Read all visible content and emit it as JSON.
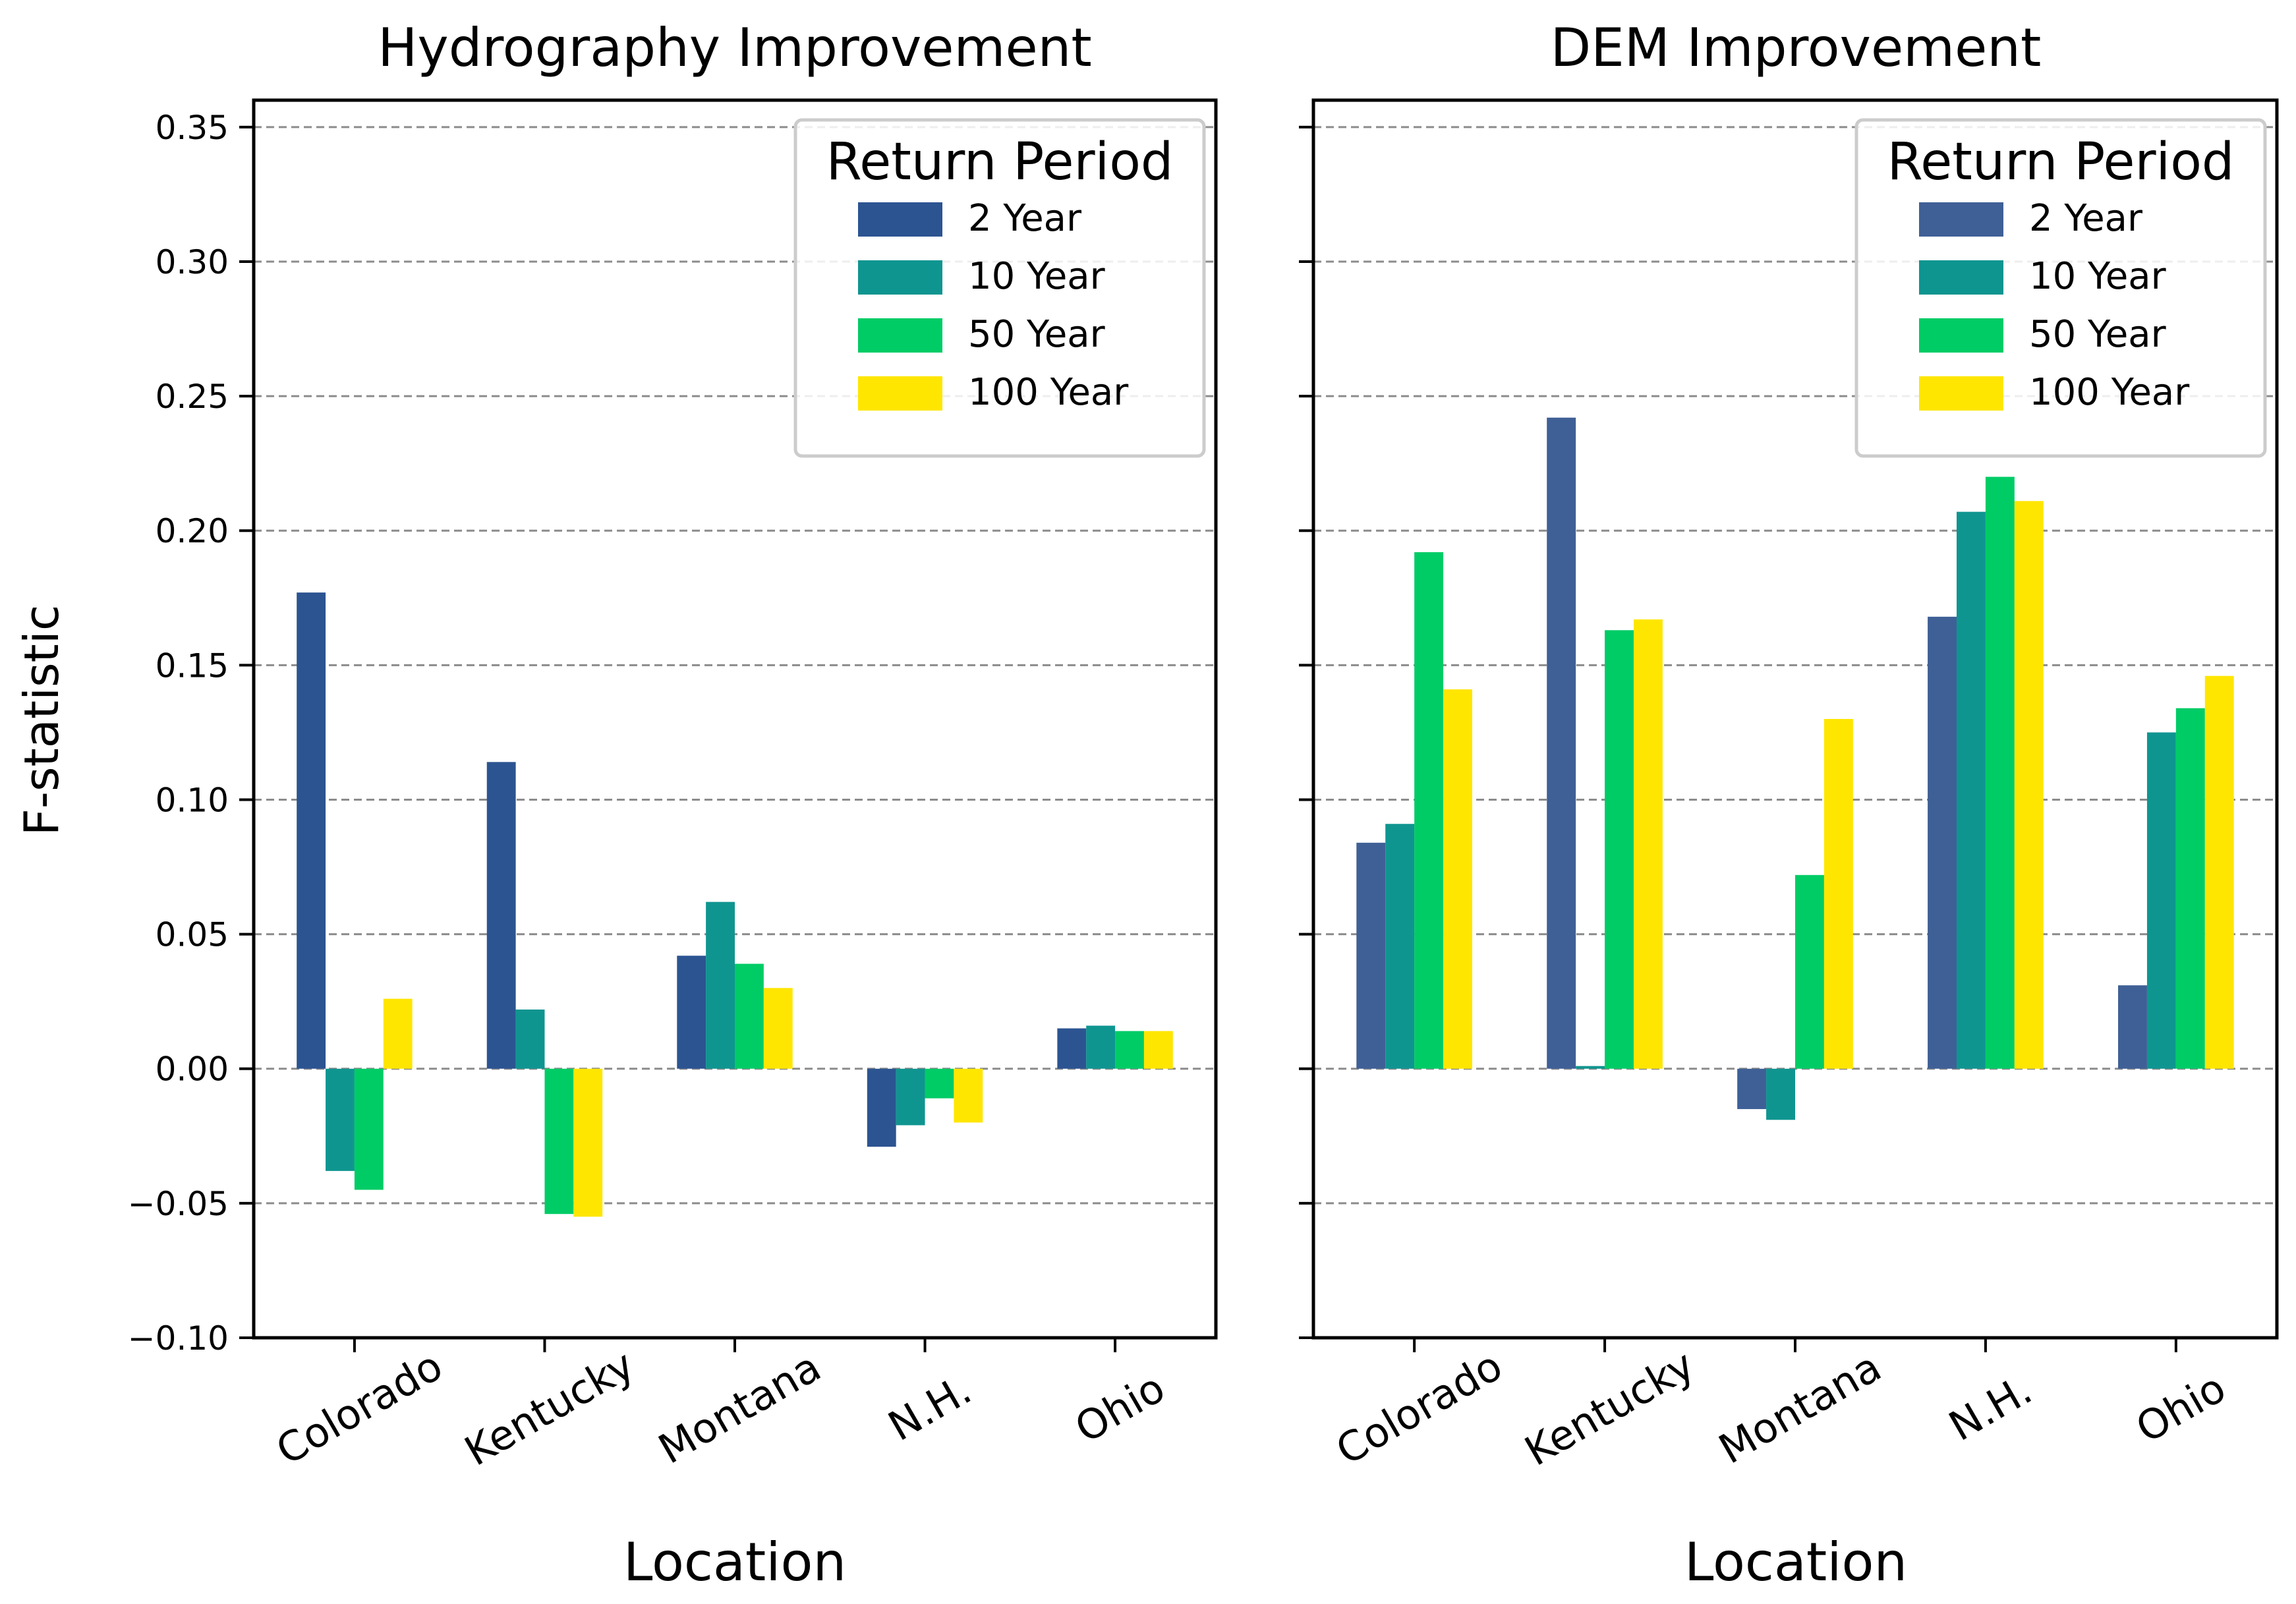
{
  "figure": {
    "ylabel": "F-statistic"
  },
  "chart_data": [
    {
      "type": "bar",
      "title": "Hydrography Improvement",
      "xlabel": "Location",
      "ylabel": "F-statistic",
      "ylim": [
        -0.1,
        0.36
      ],
      "yticks": [
        -0.1,
        -0.05,
        0.0,
        0.05,
        0.1,
        0.15,
        0.2,
        0.25,
        0.3,
        0.35
      ],
      "ytick_labels": [
        "−0.10",
        "−0.05",
        "0.00",
        "0.05",
        "0.10",
        "0.15",
        "0.20",
        "0.25",
        "0.30",
        "0.35"
      ],
      "grid": "y-dashed",
      "categories": [
        "Colorado",
        "Kentucky",
        "Montana",
        "N.H.",
        "Ohio"
      ],
      "legend": {
        "title": "Return Period",
        "placement": "top-right"
      },
      "series": [
        {
          "name": "2 Year",
          "color": "#2c5491",
          "values": [
            0.177,
            0.114,
            0.042,
            -0.029,
            0.015
          ]
        },
        {
          "name": "10 Year",
          "color": "#0f9590",
          "values": [
            -0.038,
            0.022,
            0.062,
            -0.021,
            0.016
          ]
        },
        {
          "name": "50 Year",
          "color": "#00cc66",
          "values": [
            -0.045,
            -0.054,
            0.039,
            -0.011,
            0.014
          ]
        },
        {
          "name": "100 Year",
          "color": "#ffe600",
          "values": [
            0.026,
            -0.055,
            0.03,
            -0.02,
            0.014
          ]
        }
      ]
    },
    {
      "type": "bar",
      "title": "DEM Improvement",
      "xlabel": "Location",
      "ylabel": "",
      "ylim": [
        -0.1,
        0.36
      ],
      "yticks": [
        -0.1,
        -0.05,
        0.0,
        0.05,
        0.1,
        0.15,
        0.2,
        0.25,
        0.3,
        0.35
      ],
      "grid": "y-dashed",
      "categories": [
        "Colorado",
        "Kentucky",
        "Montana",
        "N.H.",
        "Ohio"
      ],
      "legend": {
        "title": "Return Period",
        "placement": "top-right"
      },
      "series": [
        {
          "name": "2 Year",
          "color": "#3f6096",
          "values": [
            0.084,
            0.242,
            -0.015,
            0.168,
            0.031
          ]
        },
        {
          "name": "10 Year",
          "color": "#0f9590",
          "values": [
            0.091,
            0.001,
            -0.019,
            0.207,
            0.125
          ]
        },
        {
          "name": "50 Year",
          "color": "#00cc66",
          "values": [
            0.192,
            0.163,
            0.072,
            0.22,
            0.134
          ]
        },
        {
          "name": "100 Year",
          "color": "#ffe600",
          "values": [
            0.141,
            0.167,
            0.13,
            0.211,
            0.146
          ]
        }
      ]
    }
  ]
}
